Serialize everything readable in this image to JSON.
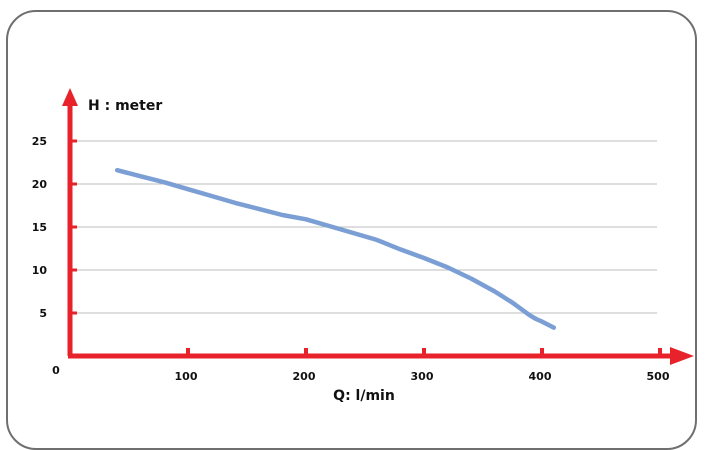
{
  "chart_data": {
    "type": "line",
    "title": "",
    "xlabel": "Q: l/min",
    "ylabel": "H : meter",
    "xlim": [
      0,
      500
    ],
    "ylim": [
      0,
      25
    ],
    "x_ticks": [
      100,
      200,
      300,
      400,
      500
    ],
    "y_ticks": [
      5,
      10,
      15,
      20,
      25
    ],
    "origin_label": "0",
    "grid": true,
    "series": [
      {
        "x": [
          40,
          60,
          80,
          100,
          120,
          140,
          160,
          180,
          200,
          220,
          240,
          260,
          280,
          300,
          320,
          340,
          360,
          375,
          385,
          390,
          395,
          400,
          410
        ],
        "y": [
          21.6,
          20.9,
          20.2,
          19.4,
          18.6,
          17.8,
          17.1,
          16.4,
          15.9,
          15.1,
          14.3,
          13.5,
          12.4,
          11.4,
          10.3,
          9.0,
          7.5,
          6.2,
          5.2,
          4.7,
          4.3,
          4.0,
          3.3
        ]
      }
    ],
    "colors": {
      "axis": "#e8222a",
      "line": "#7b9fd4",
      "grid": "#bdbdbd"
    }
  }
}
